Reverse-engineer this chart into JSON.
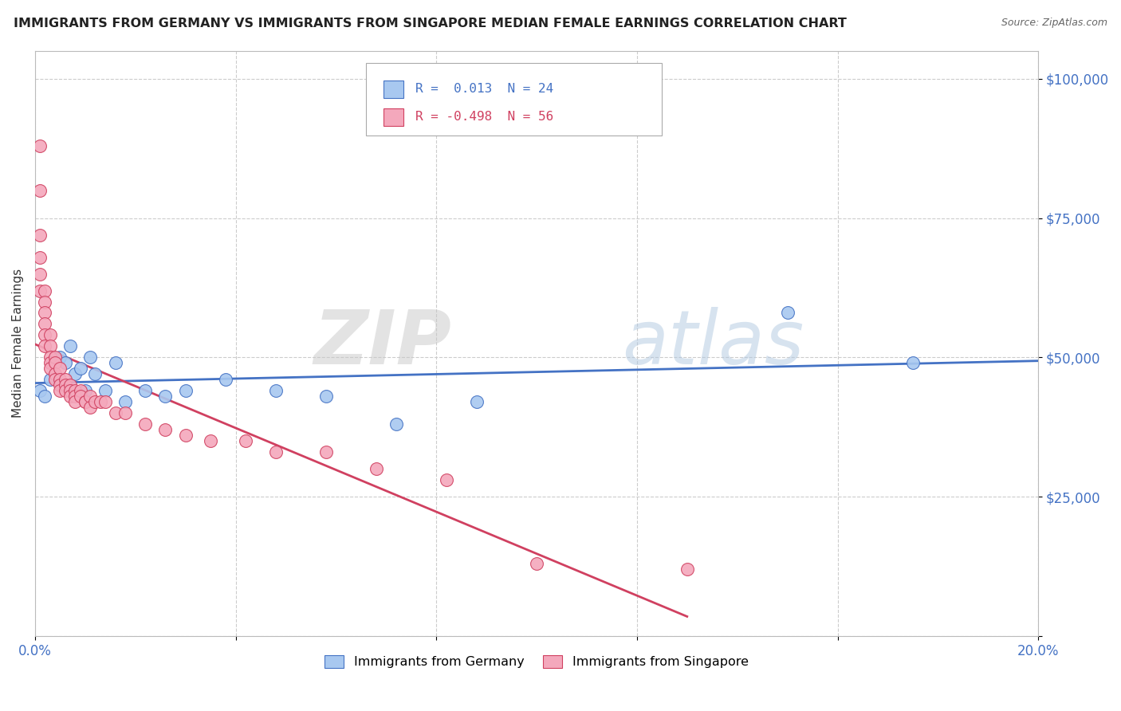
{
  "title": "IMMIGRANTS FROM GERMANY VS IMMIGRANTS FROM SINGAPORE MEDIAN FEMALE EARNINGS CORRELATION CHART",
  "source": "Source: ZipAtlas.com",
  "ylabel": "Median Female Earnings",
  "xlim": [
    0.0,
    0.2
  ],
  "ylim": [
    0,
    105000
  ],
  "color_germany": "#a8c8f0",
  "color_singapore": "#f4a8bc",
  "line_color_germany": "#4472c4",
  "line_color_singapore": "#d04060",
  "watermark_zip": "ZIP",
  "watermark_atlas": "atlas",
  "germany_x": [
    0.001,
    0.002,
    0.003,
    0.005,
    0.006,
    0.007,
    0.008,
    0.009,
    0.01,
    0.011,
    0.012,
    0.014,
    0.016,
    0.018,
    0.022,
    0.026,
    0.03,
    0.038,
    0.048,
    0.058,
    0.072,
    0.088,
    0.15,
    0.175
  ],
  "germany_y": [
    44000,
    43000,
    46000,
    50000,
    49000,
    52000,
    47000,
    48000,
    44000,
    50000,
    47000,
    44000,
    49000,
    42000,
    44000,
    43000,
    44000,
    46000,
    44000,
    43000,
    38000,
    42000,
    58000,
    49000
  ],
  "singapore_x": [
    0.001,
    0.001,
    0.001,
    0.001,
    0.001,
    0.001,
    0.002,
    0.002,
    0.002,
    0.002,
    0.002,
    0.002,
    0.003,
    0.003,
    0.003,
    0.003,
    0.003,
    0.004,
    0.004,
    0.004,
    0.004,
    0.005,
    0.005,
    0.005,
    0.005,
    0.006,
    0.006,
    0.006,
    0.007,
    0.007,
    0.007,
    0.008,
    0.008,
    0.008,
    0.009,
    0.009,
    0.01,
    0.01,
    0.011,
    0.011,
    0.012,
    0.013,
    0.014,
    0.016,
    0.018,
    0.022,
    0.026,
    0.03,
    0.035,
    0.042,
    0.048,
    0.058,
    0.068,
    0.082,
    0.1,
    0.13
  ],
  "singapore_y": [
    88000,
    80000,
    72000,
    68000,
    65000,
    62000,
    62000,
    60000,
    58000,
    56000,
    54000,
    52000,
    54000,
    52000,
    50000,
    49000,
    48000,
    50000,
    49000,
    47000,
    46000,
    48000,
    46000,
    45000,
    44000,
    46000,
    45000,
    44000,
    45000,
    44000,
    43000,
    44000,
    43000,
    42000,
    44000,
    43000,
    42000,
    42000,
    43000,
    41000,
    42000,
    42000,
    42000,
    40000,
    40000,
    38000,
    37000,
    36000,
    35000,
    35000,
    33000,
    33000,
    30000,
    28000,
    13000,
    12000
  ],
  "singapore_line_xend": 0.13
}
